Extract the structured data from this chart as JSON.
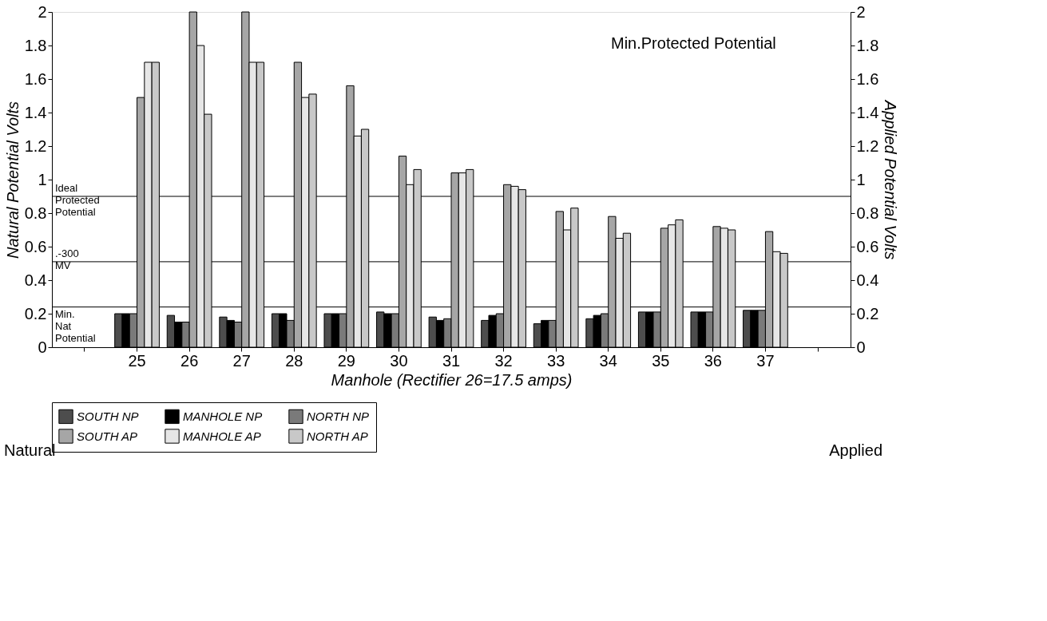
{
  "chart_data": {
    "type": "bar",
    "xlabel": "Manhole (Rectifier 26=17.5 amps)",
    "ylabel": "Natural Potential Volts",
    "y2label": "Applied Potential Volts",
    "categories": [
      null,
      "25",
      "26",
      "27",
      "28",
      "29",
      "30",
      "31",
      "32",
      "33",
      "34",
      "35",
      "36",
      "37",
      null
    ],
    "series": [
      {
        "name": "SOUTH NP",
        "color": "#4d4d4d",
        "values": [
          null,
          0.2,
          0.19,
          0.18,
          0.2,
          0.2,
          0.21,
          0.18,
          0.16,
          0.14,
          0.17,
          0.21,
          0.21,
          0.22,
          null
        ]
      },
      {
        "name": "MANHOLE NP",
        "color": "#000000",
        "values": [
          null,
          0.2,
          0.15,
          0.16,
          0.2,
          0.2,
          0.2,
          0.16,
          0.19,
          0.16,
          0.19,
          0.21,
          0.21,
          0.22,
          null
        ]
      },
      {
        "name": "NORTH NP",
        "color": "#7a7a7a",
        "values": [
          null,
          0.2,
          0.15,
          0.15,
          0.16,
          0.2,
          0.2,
          0.17,
          0.2,
          0.16,
          0.2,
          0.21,
          0.21,
          0.22,
          null
        ]
      },
      {
        "name": "SOUTH AP",
        "color": "#a6a6a6",
        "axis": "y2",
        "values": [
          null,
          1.49,
          2,
          2,
          1.7,
          1.56,
          1.14,
          1.04,
          0.97,
          0.81,
          0.78,
          0.71,
          0.72,
          0.69,
          null
        ]
      },
      {
        "name": "MANHOLE AP",
        "color": "#e6e6e6",
        "axis": "y2",
        "values": [
          null,
          1.7,
          1.8,
          1.7,
          1.49,
          1.26,
          0.97,
          1.04,
          0.96,
          0.7,
          0.65,
          0.73,
          0.71,
          0.57,
          null
        ]
      },
      {
        "name": "NORTH AP",
        "color": "#c8c8c8",
        "axis": "y2",
        "values": [
          null,
          1.7,
          1.39,
          1.7,
          1.51,
          1.3,
          1.06,
          1.06,
          0.94,
          0.83,
          0.68,
          0.76,
          0.7,
          0.56,
          null
        ]
      }
    ],
    "ylim": [
      0,
      2
    ],
    "yticks": [
      0,
      0.2,
      0.4,
      0.6,
      0.8,
      1,
      1.2,
      1.4,
      1.6,
      1.8,
      2
    ],
    "y2lim": [
      0,
      2
    ],
    "y2ticks": [
      0,
      0.2,
      0.4,
      0.6,
      0.8,
      1,
      1.2,
      1.4,
      1.6,
      1.8,
      2
    ],
    "ref_lines": [
      {
        "axis": "y",
        "value": 0.24,
        "label": "Min. Nat Potential"
      },
      {
        "axis": "y",
        "value": 0.51,
        "label": ".-300 MV"
      },
      {
        "axis": "y",
        "value": 0.9,
        "label": "Ideal Protected Potential"
      }
    ],
    "annotations": [
      "Min.Protected Potential",
      "Natural",
      "Applied"
    ],
    "grid": false,
    "legend": "bottom"
  }
}
